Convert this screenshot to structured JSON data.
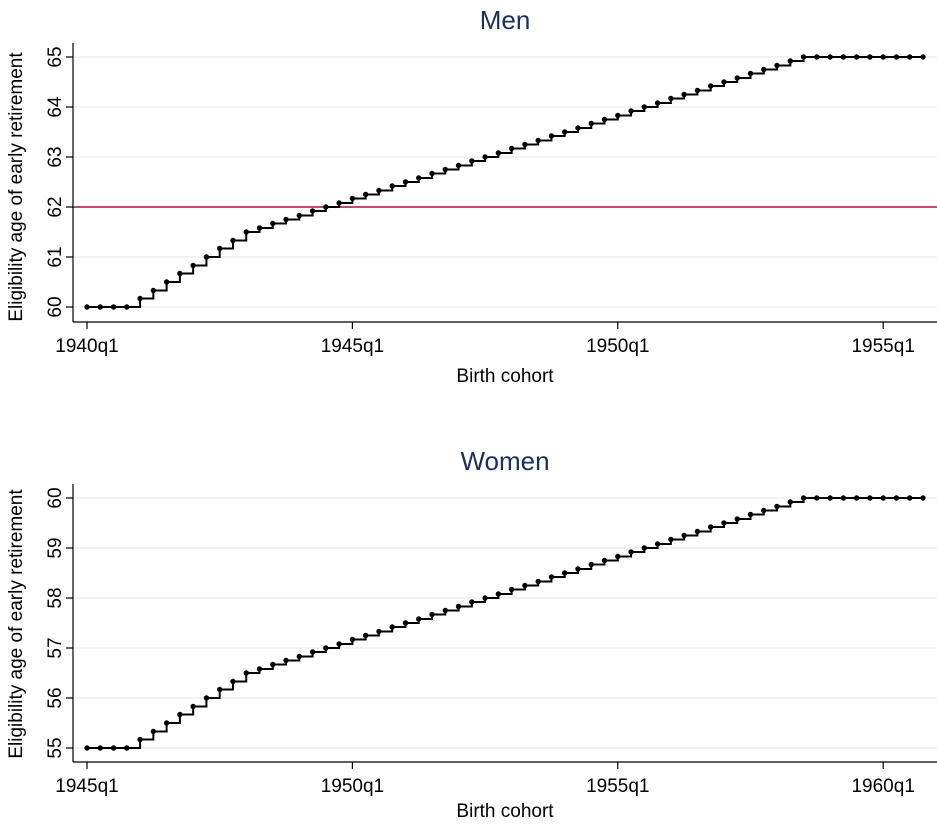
{
  "chart_data": [
    {
      "type": "line",
      "title": "Men",
      "xlabel": "Birth cohort",
      "ylabel": "Eligibility age of early retirement",
      "x_start": "1940q1",
      "x_end": "1955q4",
      "x_ticks": [
        "1940q1",
        "1945q1",
        "1950q1",
        "1955q1"
      ],
      "y_ticks": [
        60,
        61,
        62,
        63,
        64,
        65
      ],
      "ylim": [
        60,
        65
      ],
      "grid": true,
      "reference_line": {
        "y": 62,
        "color": "#b0123c"
      },
      "series": [
        {
          "style": "step",
          "values": [
            60,
            60,
            60,
            60,
            60.17,
            60.33,
            60.5,
            60.67,
            60.83,
            61,
            61.17,
            61.33,
            61.5,
            61.58,
            61.67,
            61.75,
            61.83,
            61.92,
            62,
            62.08,
            62.17,
            62.25,
            62.33,
            62.42,
            62.5,
            62.58,
            62.67,
            62.75,
            62.83,
            62.92,
            63,
            63.08,
            63.17,
            63.25,
            63.33,
            63.42,
            63.5,
            63.58,
            63.67,
            63.75,
            63.83,
            63.92,
            64,
            64.08,
            64.17,
            64.25,
            64.33,
            64.42,
            64.5,
            64.58,
            64.67,
            64.75,
            64.83,
            64.92,
            65,
            65,
            65,
            65,
            65,
            65,
            65,
            65,
            65,
            65
          ]
        }
      ]
    },
    {
      "type": "line",
      "title": "Women",
      "xlabel": "Birth cohort",
      "ylabel": "Eligibility age of early retirement",
      "x_start": "1945q1",
      "x_end": "1960q4",
      "x_ticks": [
        "1945q1",
        "1950q1",
        "1955q1",
        "1960q1"
      ],
      "y_ticks": [
        55,
        56,
        57,
        58,
        59,
        60
      ],
      "ylim": [
        55,
        60
      ],
      "grid": true,
      "series": [
        {
          "style": "step",
          "values": [
            55,
            55,
            55,
            55,
            55.17,
            55.33,
            55.5,
            55.67,
            55.83,
            56,
            56.17,
            56.33,
            56.5,
            56.58,
            56.67,
            56.75,
            56.83,
            56.92,
            57,
            57.08,
            57.17,
            57.25,
            57.33,
            57.42,
            57.5,
            57.58,
            57.67,
            57.75,
            57.83,
            57.92,
            58,
            58.08,
            58.17,
            58.25,
            58.33,
            58.42,
            58.5,
            58.58,
            58.67,
            58.75,
            58.83,
            58.92,
            59,
            59.08,
            59.17,
            59.25,
            59.33,
            59.42,
            59.5,
            59.58,
            59.67,
            59.75,
            59.83,
            59.92,
            60,
            60,
            60,
            60,
            60,
            60,
            60,
            60,
            60,
            60
          ]
        }
      ]
    }
  ]
}
